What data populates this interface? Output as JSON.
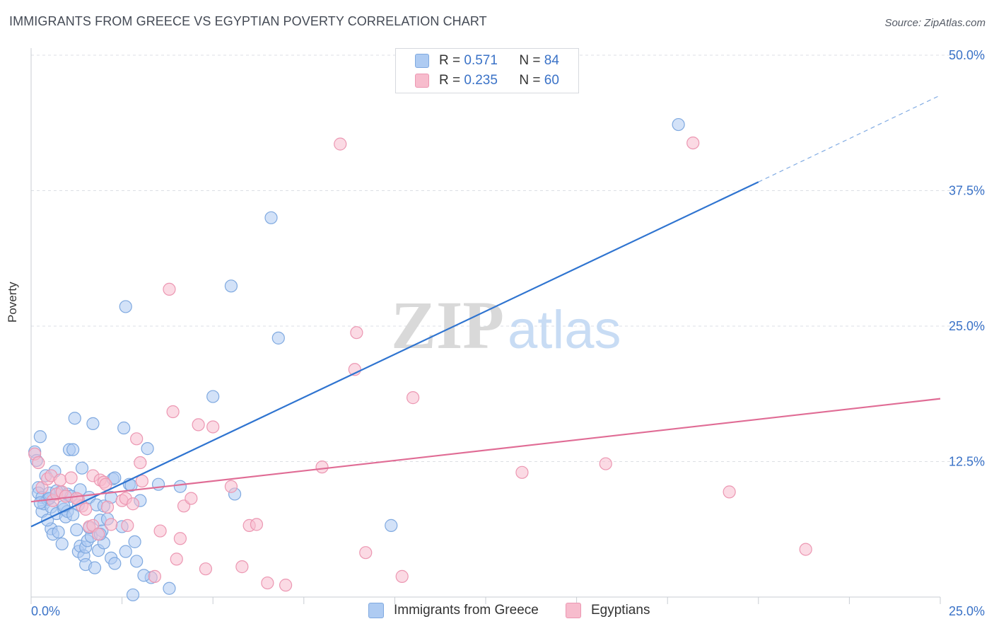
{
  "title": "IMMIGRANTS FROM GREECE VS EGYPTIAN POVERTY CORRELATION CHART",
  "source": "Source: ZipAtlas.com",
  "watermark": {
    "zip": "ZIP",
    "atlas": "atlas"
  },
  "colors": {
    "blue_fill": "#aecbf2",
    "blue_stroke": "#7fa9e0",
    "blue_line": "#2f74d0",
    "pink_fill": "#f7bccd",
    "pink_stroke": "#ec97b2",
    "pink_line": "#e06c95",
    "axis_text": "#3a72c7",
    "grid": "#dcdfe4"
  },
  "legend": {
    "rows": [
      {
        "r_label": "R = ",
        "r_value": "0.571",
        "n_label": "N = ",
        "n_value": "84",
        "series": "blue"
      },
      {
        "r_label": "R = ",
        "r_value": "0.235",
        "n_label": "N = ",
        "n_value": "60",
        "series": "pink"
      }
    ],
    "bottom": [
      "Immigrants from Greece",
      "Egyptians"
    ]
  },
  "chart_data": {
    "type": "scatter",
    "xlabel": "",
    "ylabel": "Poverty",
    "xlim": [
      0,
      25
    ],
    "ylim": [
      0,
      50
    ],
    "x_tick_labels": [
      {
        "value": 0,
        "label": "0.0%"
      },
      {
        "value": 25,
        "label": "25.0%"
      }
    ],
    "y_tick_labels": [
      {
        "value": 12.5,
        "label": "12.5%"
      },
      {
        "value": 25,
        "label": "25.0%"
      },
      {
        "value": 37.5,
        "label": "37.5%"
      },
      {
        "value": 50,
        "label": "50.0%"
      }
    ],
    "grid": true,
    "legend_position": "top-center",
    "series": [
      {
        "name": "Immigrants from Greece",
        "color": "blue",
        "points": [
          [
            0.1,
            13.4
          ],
          [
            0.15,
            12.6
          ],
          [
            0.2,
            10.1
          ],
          [
            0.2,
            9.6
          ],
          [
            0.25,
            14.8
          ],
          [
            0.3,
            9.2
          ],
          [
            0.3,
            7.9
          ],
          [
            0.35,
            8.6
          ],
          [
            0.4,
            11.2
          ],
          [
            0.45,
            9.0
          ],
          [
            0.5,
            9.6
          ],
          [
            0.55,
            8.3
          ],
          [
            0.55,
            6.3
          ],
          [
            0.6,
            5.8
          ],
          [
            0.65,
            11.6
          ],
          [
            0.7,
            7.7
          ],
          [
            0.75,
            6.0
          ],
          [
            0.8,
            9.7
          ],
          [
            0.85,
            4.9
          ],
          [
            0.9,
            8.1
          ],
          [
            0.95,
            7.4
          ],
          [
            1.0,
            7.9
          ],
          [
            1.0,
            9.5
          ],
          [
            1.05,
            13.6
          ],
          [
            1.1,
            9.3
          ],
          [
            1.15,
            13.6
          ],
          [
            1.2,
            16.5
          ],
          [
            1.25,
            6.2
          ],
          [
            1.3,
            8.5
          ],
          [
            1.3,
            4.2
          ],
          [
            1.35,
            4.7
          ],
          [
            1.35,
            9.9
          ],
          [
            1.4,
            11.9
          ],
          [
            1.45,
            3.8
          ],
          [
            1.5,
            4.6
          ],
          [
            1.5,
            3.0
          ],
          [
            1.55,
            5.2
          ],
          [
            1.6,
            9.2
          ],
          [
            1.65,
            5.6
          ],
          [
            1.7,
            16.0
          ],
          [
            1.75,
            2.7
          ],
          [
            1.8,
            8.5
          ],
          [
            1.85,
            4.3
          ],
          [
            1.9,
            7.1
          ],
          [
            1.95,
            6.1
          ],
          [
            2.0,
            5.0
          ],
          [
            2.0,
            8.4
          ],
          [
            2.1,
            7.2
          ],
          [
            2.2,
            9.2
          ],
          [
            2.25,
            10.9
          ],
          [
            2.3,
            11.0
          ],
          [
            2.5,
            6.5
          ],
          [
            2.55,
            15.6
          ],
          [
            2.6,
            4.2
          ],
          [
            2.6,
            26.8
          ],
          [
            2.7,
            10.4
          ],
          [
            2.75,
            10.3
          ],
          [
            2.85,
            5.1
          ],
          [
            2.9,
            3.3
          ],
          [
            3.0,
            8.9
          ],
          [
            3.2,
            13.7
          ],
          [
            3.3,
            1.8
          ],
          [
            3.5,
            10.4
          ],
          [
            3.8,
            0.8
          ],
          [
            4.1,
            10.2
          ],
          [
            5.0,
            18.5
          ],
          [
            5.5,
            28.7
          ],
          [
            5.6,
            9.5
          ],
          [
            6.6,
            35.0
          ],
          [
            6.8,
            23.9
          ],
          [
            9.9,
            6.6
          ],
          [
            2.8,
            0.2
          ],
          [
            0.9,
            8.4
          ],
          [
            1.15,
            7.6
          ],
          [
            0.5,
            9.1
          ],
          [
            0.7,
            9.8
          ],
          [
            1.6,
            6.4
          ],
          [
            0.25,
            8.7
          ],
          [
            0.45,
            7.1
          ],
          [
            2.2,
            3.6
          ],
          [
            3.1,
            2.0
          ],
          [
            17.8,
            43.6
          ],
          [
            1.9,
            5.8
          ],
          [
            2.3,
            3.1
          ]
        ]
      },
      {
        "name": "Egyptians",
        "color": "pink",
        "points": [
          [
            0.1,
            13.2
          ],
          [
            0.2,
            12.4
          ],
          [
            0.3,
            10.1
          ],
          [
            0.45,
            10.9
          ],
          [
            0.55,
            11.2
          ],
          [
            0.6,
            8.9
          ],
          [
            0.7,
            9.5
          ],
          [
            0.8,
            10.8
          ],
          [
            0.85,
            9.7
          ],
          [
            0.95,
            9.3
          ],
          [
            1.1,
            11.0
          ],
          [
            1.3,
            9.0
          ],
          [
            1.4,
            8.4
          ],
          [
            1.5,
            8.1
          ],
          [
            1.6,
            6.5
          ],
          [
            1.7,
            6.6
          ],
          [
            1.7,
            11.2
          ],
          [
            1.85,
            5.8
          ],
          [
            1.9,
            10.8
          ],
          [
            2.0,
            10.6
          ],
          [
            2.05,
            10.4
          ],
          [
            2.1,
            8.3
          ],
          [
            2.2,
            6.7
          ],
          [
            2.5,
            8.9
          ],
          [
            2.6,
            9.1
          ],
          [
            2.65,
            6.6
          ],
          [
            2.8,
            8.6
          ],
          [
            2.9,
            14.6
          ],
          [
            3.0,
            12.4
          ],
          [
            3.05,
            10.7
          ],
          [
            3.4,
            1.9
          ],
          [
            3.55,
            6.1
          ],
          [
            3.8,
            28.4
          ],
          [
            3.9,
            17.1
          ],
          [
            4.0,
            3.5
          ],
          [
            4.1,
            5.4
          ],
          [
            4.2,
            8.4
          ],
          [
            4.4,
            9.1
          ],
          [
            4.6,
            15.9
          ],
          [
            4.8,
            2.6
          ],
          [
            5.0,
            15.7
          ],
          [
            5.5,
            10.2
          ],
          [
            5.8,
            2.8
          ],
          [
            6.0,
            6.6
          ],
          [
            6.2,
            6.7
          ],
          [
            6.5,
            1.3
          ],
          [
            7.0,
            1.1
          ],
          [
            8.0,
            12.0
          ],
          [
            8.5,
            41.8
          ],
          [
            8.9,
            21.0
          ],
          [
            8.95,
            24.4
          ],
          [
            9.2,
            4.1
          ],
          [
            10.2,
            1.9
          ],
          [
            10.5,
            18.4
          ],
          [
            13.5,
            11.5
          ],
          [
            15.8,
            12.3
          ],
          [
            18.2,
            41.9
          ],
          [
            19.2,
            9.7
          ],
          [
            21.3,
            4.4
          ],
          [
            1.25,
            9.1
          ]
        ]
      }
    ],
    "trend_lines": [
      {
        "series": "Immigrants from Greece",
        "x": [
          0,
          20,
          25
        ],
        "y": [
          6.5,
          38.3,
          46.3
        ],
        "solid_to_x": 20
      },
      {
        "series": "Egyptians",
        "x": [
          0,
          25
        ],
        "y": [
          8.8,
          18.3
        ]
      }
    ]
  }
}
